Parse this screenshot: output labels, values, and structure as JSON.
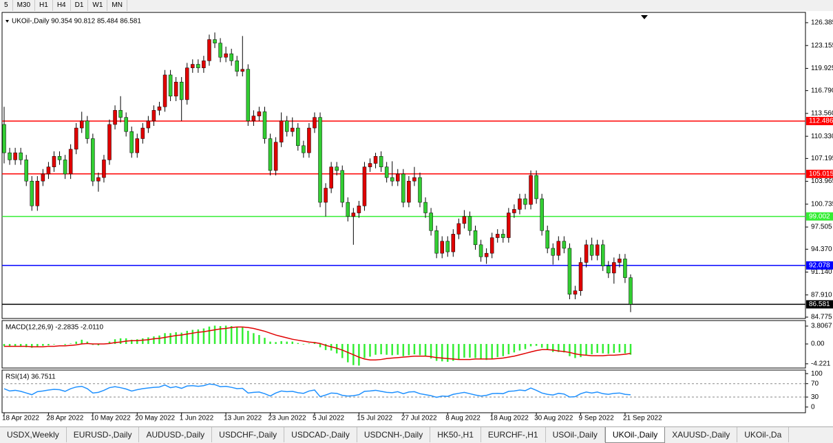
{
  "toolbar": [
    "5",
    "M30",
    "H1",
    "H4",
    "D1",
    "W1",
    "MN"
  ],
  "chart_data": {
    "type": "candlestick",
    "header": "UKOil-,Daily  90.354 90.812 85.484 86.581",
    "ylim": [
      84.58,
      127.84
    ],
    "yticks": [
      126.385,
      123.155,
      119.925,
      {
        "value": 116.79,
        "label": "116.790"
      },
      {
        "value": 113.56,
        "label": "113.560"
      },
      {
        "value": 110.33,
        "label": "110.330"
      },
      107.195,
      103.965,
      100.735,
      97.505,
      {
        "value": 94.37,
        "label": "94.370"
      },
      {
        "value": 91.14,
        "label": "91.140"
      },
      {
        "value": 87.91,
        "label": "87.910"
      },
      84.775
    ],
    "bull_color": "#e00000",
    "bear_color": "#32cd32",
    "levels": [
      {
        "value": 112.486,
        "color": "#ff0000"
      },
      {
        "value": 105.015,
        "color": "#ff0000"
      },
      {
        "value": 99.002,
        "color": "#33ee33"
      },
      {
        "value": 92.078,
        "color": "#0000ff"
      },
      {
        "value": 86.581,
        "color": "#000000"
      }
    ],
    "categories": [
      "18 Apr 2022",
      null,
      null,
      null,
      null,
      null,
      null,
      null,
      "28 Apr 2022",
      null,
      null,
      null,
      null,
      null,
      null,
      null,
      "10 May 2022",
      null,
      null,
      null,
      null,
      null,
      null,
      null,
      "20 May 2022",
      null,
      null,
      null,
      null,
      null,
      null,
      null,
      "1 Jun 2022",
      null,
      null,
      null,
      null,
      null,
      null,
      null,
      "13 Jun 2022",
      null,
      null,
      null,
      null,
      null,
      null,
      null,
      "23 Jun 2022",
      null,
      null,
      null,
      null,
      null,
      null,
      null,
      "5 Jul 2022",
      null,
      null,
      null,
      null,
      null,
      null,
      null,
      "15 Jul 2022",
      null,
      null,
      null,
      null,
      null,
      null,
      null,
      "27 Jul 2022",
      null,
      null,
      null,
      null,
      null,
      null,
      null,
      "8 Aug 2022",
      null,
      null,
      null,
      null,
      null,
      null,
      null,
      "18 Aug 2022",
      null,
      null,
      null,
      null,
      null,
      null,
      null,
      "30 Aug 2022",
      null,
      null,
      null,
      null,
      null,
      null,
      null,
      "9 Sep 2022",
      null,
      null,
      null,
      null,
      null,
      null,
      null,
      "21 Sep 2022",
      null
    ],
    "candles": [
      [
        112,
        114.5,
        106.5,
        108
      ],
      [
        108,
        108.7,
        106.3,
        107
      ],
      [
        107,
        108.7,
        106.3,
        108
      ],
      [
        108,
        108.7,
        106.3,
        107
      ],
      [
        107,
        107.7,
        103.3,
        104
      ],
      [
        104,
        104.7,
        99.8,
        100.5
      ],
      [
        100.5,
        104.7,
        99.8,
        104
      ],
      [
        104,
        105.7,
        103.3,
        105
      ],
      [
        105,
        106.7,
        104.3,
        106
      ],
      [
        106,
        108.2,
        105.3,
        107.5
      ],
      [
        107.5,
        108.2,
        106.3,
        107
      ],
      [
        107,
        107.7,
        104.3,
        105
      ],
      [
        105,
        109.2,
        104.3,
        108.5
      ],
      [
        108.5,
        112.2,
        107.8,
        111.5
      ],
      [
        111.5,
        113.8,
        110.8,
        112.5
      ],
      [
        112.5,
        113.2,
        109.3,
        110
      ],
      [
        110,
        110.7,
        103.3,
        104
      ],
      [
        104,
        105.2,
        102.5,
        104.5
      ],
      [
        104.5,
        107.7,
        103.8,
        107
      ],
      [
        107,
        112.7,
        106.3,
        112
      ],
      [
        112,
        114.7,
        111.3,
        114
      ],
      [
        114,
        116,
        112.3,
        113
      ],
      [
        113,
        113.7,
        110.3,
        111
      ],
      [
        111,
        111.7,
        107.3,
        108
      ],
      [
        108,
        110.7,
        107.3,
        110
      ],
      [
        110,
        112.2,
        109.3,
        111.5
      ],
      [
        111.5,
        113.2,
        110.8,
        112.5
      ],
      [
        112.5,
        114.7,
        111.8,
        114
      ],
      [
        114,
        115.2,
        113.3,
        114.5
      ],
      [
        114.5,
        119.7,
        113.8,
        119
      ],
      [
        119,
        119.7,
        115.3,
        116
      ],
      [
        116,
        118.7,
        115.3,
        118
      ],
      [
        118,
        118.7,
        112.5,
        115.5
      ],
      [
        115.5,
        120.7,
        114.8,
        120
      ],
      [
        120,
        121.2,
        119.3,
        120.5
      ],
      [
        120.5,
        121.2,
        119.3,
        120
      ],
      [
        120,
        121.7,
        119.3,
        121
      ],
      [
        121,
        124.7,
        120.3,
        124
      ],
      [
        124,
        125,
        122.8,
        123.5
      ],
      [
        123.5,
        124.2,
        120.8,
        121.5
      ],
      [
        121.5,
        123,
        120.8,
        122
      ],
      [
        122,
        122.7,
        120.3,
        121
      ],
      [
        121,
        121.7,
        118.8,
        119.5
      ],
      [
        119.5,
        124.5,
        118.8,
        119.8
      ],
      [
        119.8,
        120.5,
        111.8,
        112.5
      ],
      [
        112.5,
        114,
        111.8,
        113.2
      ],
      [
        113.2,
        114.5,
        112.5,
        113.8
      ],
      [
        113.8,
        114.5,
        109.3,
        110
      ],
      [
        110,
        110.7,
        104.8,
        105.5
      ],
      [
        105.5,
        110.2,
        104.8,
        109.5
      ],
      [
        109.5,
        113.7,
        108.8,
        112.5
      ],
      [
        112.5,
        113.2,
        110.3,
        111
      ],
      [
        111,
        113,
        110.3,
        111.5
      ],
      [
        111.5,
        112.2,
        108.3,
        109
      ],
      [
        109,
        109.7,
        107.3,
        108
      ],
      [
        108,
        112.2,
        107.3,
        111.5
      ],
      [
        111.5,
        113.7,
        110.8,
        113
      ],
      [
        113,
        113.7,
        100.3,
        101
      ],
      [
        101,
        103.7,
        99,
        103
      ],
      [
        103,
        106.7,
        102.3,
        106
      ],
      [
        106,
        106.7,
        104.8,
        105.5
      ],
      [
        105.5,
        106.2,
        100.3,
        101
      ],
      [
        101,
        101.7,
        98.3,
        99
      ],
      [
        99,
        100.2,
        95,
        99.5
      ],
      [
        99.5,
        101.2,
        98.8,
        100.5
      ],
      [
        100.5,
        106.7,
        99.8,
        106
      ],
      [
        106,
        107.2,
        105.3,
        106.5
      ],
      [
        106.5,
        108,
        105.8,
        107.5
      ],
      [
        107.5,
        108.2,
        105.3,
        106
      ],
      [
        106,
        106.7,
        103.8,
        104.5
      ],
      [
        104.5,
        106.8,
        103.3,
        104
      ],
      [
        104,
        105.7,
        103.3,
        105
      ],
      [
        105,
        105.7,
        100.3,
        101
      ],
      [
        101,
        104.7,
        100.3,
        104
      ],
      [
        104,
        106,
        103.3,
        104.5
      ],
      [
        104.5,
        105.2,
        100.3,
        101
      ],
      [
        101,
        101.7,
        98.8,
        99.5
      ],
      [
        99.5,
        100.2,
        96.3,
        97
      ],
      [
        97,
        97.7,
        93.1,
        93.8
      ],
      [
        93.8,
        96.2,
        93.1,
        95.5
      ],
      [
        95.5,
        96.2,
        93.3,
        94
      ],
      [
        94,
        97.2,
        93.3,
        96.5
      ],
      [
        96.5,
        98.7,
        95.8,
        98
      ],
      [
        98,
        99.9,
        97.3,
        99
      ],
      [
        99,
        99.7,
        96.3,
        97
      ],
      [
        97,
        97.7,
        94.3,
        95
      ],
      [
        95,
        95.7,
        92.6,
        93.3
      ],
      [
        93.3,
        94.5,
        92.3,
        93.8
      ],
      [
        93.8,
        96.7,
        93.1,
        96
      ],
      [
        96,
        97.2,
        95.3,
        96.5
      ],
      [
        96.5,
        97.2,
        95.3,
        96
      ],
      [
        96,
        100.2,
        95.3,
        99.5
      ],
      [
        99.5,
        100.7,
        98.8,
        100
      ],
      [
        100,
        102.2,
        99.3,
        101.5
      ],
      [
        101.5,
        102.2,
        100,
        100.7
      ],
      [
        100.7,
        105.5,
        100,
        104.8
      ],
      [
        104.8,
        105.5,
        100.8,
        101.5
      ],
      [
        101.5,
        102.2,
        96.3,
        97
      ],
      [
        97,
        97.7,
        93.8,
        94.5
      ],
      [
        94.5,
        95.2,
        92.2,
        93.5
      ],
      [
        93.5,
        96.2,
        92.8,
        95.5
      ],
      [
        95.5,
        96.2,
        93.8,
        94.5
      ],
      [
        94.5,
        95.2,
        87.3,
        88
      ],
      [
        88,
        89.2,
        87.3,
        88.5
      ],
      [
        88.5,
        93.2,
        87.8,
        92.5
      ],
      [
        92.5,
        95.7,
        91.8,
        95
      ],
      [
        95,
        96,
        92.8,
        93.5
      ],
      [
        93.5,
        95.7,
        92.8,
        95
      ],
      [
        95,
        95.7,
        91.3,
        92
      ],
      [
        92,
        92.7,
        90.3,
        91
      ],
      [
        91,
        93.2,
        89.5,
        92.5
      ],
      [
        92.5,
        93.7,
        91.8,
        93
      ],
      [
        93,
        93.7,
        89.6,
        90.354
      ],
      [
        90.354,
        90.812,
        85.484,
        86.581
      ]
    ],
    "macd": {
      "header": "MACD(12,26,9) -2.2835 -2.0110",
      "ylim": [
        -5.12,
        4.98
      ],
      "yticks": [
        3.8067,
        {
          "value": 0,
          "label": "0.00"
        },
        -4.221
      ],
      "histogram_color": "#33ee33",
      "signal_color": "#e00000",
      "histogram": [
        -0.5,
        -0.6,
        -0.5,
        -0.6,
        -0.7,
        -0.8,
        -0.6,
        -0.4,
        -0.3,
        -0.1,
        0.0,
        -0.2,
        0.1,
        0.5,
        0.9,
        0.5,
        -0.2,
        -0.3,
        0.0,
        0.5,
        1.0,
        1.2,
        1.2,
        0.9,
        1.0,
        1.2,
        1.4,
        1.6,
        1.8,
        2.3,
        2.3,
        2.5,
        2.4,
        2.8,
        3.0,
        3.1,
        3.3,
        3.7,
        3.9,
        3.8,
        3.9,
        3.8,
        3.6,
        3.5,
        2.8,
        2.3,
        1.9,
        1.3,
        0.5,
        0.4,
        0.6,
        0.5,
        0.5,
        0.2,
        -0.1,
        0.1,
        0.4,
        -0.7,
        -1.3,
        -1.4,
        -2.0,
        -3.0,
        -3.9,
        -4.5,
        -4.6,
        -3.0,
        -2.7,
        -2.3,
        -2.2,
        -2.3,
        -2.4,
        -2.3,
        -2.6,
        -2.4,
        -2.2,
        -2.4,
        -2.7,
        -3.1,
        -3.6,
        -3.7,
        -3.8,
        -3.6,
        -3.3,
        -2.9,
        -2.9,
        -3.0,
        -3.3,
        -3.4,
        -3.1,
        -2.8,
        -2.6,
        -2.2,
        -1.8,
        -1.4,
        -1.1,
        -0.5,
        -0.4,
        -0.8,
        -1.3,
        -1.7,
        -1.7,
        -1.8,
        -2.6,
        -3.0,
        -2.8,
        -2.3,
        -2.2,
        -1.9,
        -2.0,
        -2.1,
        -1.9,
        -1.8,
        -2.0,
        -2.2835
      ],
      "signal": [
        -0.5,
        -0.5,
        -0.5,
        -0.5,
        -0.5,
        -0.6,
        -0.6,
        -0.6,
        -0.5,
        -0.5,
        -0.4,
        -0.4,
        -0.3,
        -0.2,
        0.0,
        0.1,
        0.0,
        0.0,
        0.0,
        0.1,
        0.3,
        0.4,
        0.6,
        0.7,
        0.7,
        0.8,
        0.9,
        1.1,
        1.2,
        1.4,
        1.6,
        1.8,
        1.9,
        2.1,
        2.3,
        2.5,
        2.6,
        2.8,
        3.0,
        3.2,
        3.3,
        3.5,
        3.6,
        3.6,
        3.5,
        3.3,
        3.0,
        2.7,
        2.3,
        1.9,
        1.6,
        1.3,
        1.0,
        0.8,
        0.6,
        0.4,
        0.3,
        0.1,
        -0.3,
        -0.6,
        -0.9,
        -1.3,
        -1.8,
        -2.3,
        -2.8,
        -3.2,
        -3.4,
        -3.4,
        -3.3,
        -3.1,
        -3.0,
        -2.9,
        -2.8,
        -2.7,
        -2.6,
        -2.6,
        -2.6,
        -2.7,
        -2.9,
        -3.0,
        -3.1,
        -3.2,
        -3.3,
        -3.3,
        -3.3,
        -3.2,
        -3.2,
        -3.2,
        -3.2,
        -3.1,
        -3.0,
        -2.8,
        -2.6,
        -2.3,
        -2.0,
        -1.7,
        -1.4,
        -1.2,
        -1.2,
        -1.3,
        -1.5,
        -1.6,
        -1.8,
        -2.1,
        -2.3,
        -2.4,
        -2.5,
        -2.5,
        -2.5,
        -2.4,
        -2.4,
        -2.3,
        -2.2,
        -2.011
      ]
    },
    "rsi": {
      "header": "RSI(14) 36.7511",
      "ylim": [
        -17,
        110.6
      ],
      "yticks": [
        100,
        70,
        30,
        0
      ],
      "levels": [
        70,
        30
      ],
      "color": "#1e90ff",
      "values": [
        55,
        48,
        50,
        47,
        42,
        37,
        46,
        48,
        51,
        53,
        52,
        47,
        55,
        60,
        62,
        55,
        42,
        44,
        50,
        58,
        61,
        58,
        54,
        48,
        52,
        55,
        57,
        59,
        60,
        66,
        58,
        61,
        56,
        63,
        64,
        62,
        64,
        69,
        67,
        61,
        62,
        59,
        55,
        56,
        42,
        44,
        45,
        40,
        33,
        42,
        48,
        46,
        47,
        43,
        41,
        48,
        51,
        31,
        36,
        42,
        41,
        35,
        33,
        34,
        37,
        47,
        48,
        50,
        47,
        44,
        43,
        46,
        40,
        45,
        46,
        40,
        37,
        34,
        29,
        33,
        32,
        38,
        41,
        44,
        40,
        36,
        33,
        35,
        40,
        41,
        40,
        47,
        48,
        51,
        49,
        57,
        50,
        42,
        38,
        36,
        41,
        39,
        30,
        31,
        40,
        45,
        42,
        45,
        40,
        38,
        41,
        42,
        38,
        36.7511
      ]
    }
  },
  "tabs": [
    "USDX,Weekly",
    "EURUSD-,Daily",
    "AUDUSD-,Daily",
    "USDCHF-,Daily",
    "USDCAD-,Daily",
    "USDCNH-,Daily",
    "HK50-,H1",
    "EURCHF-,H1",
    "USOil-,Daily",
    "UKOil-,Daily",
    "XAUUSD-,Daily",
    "UKOil-,Da"
  ],
  "active_tab": 9
}
